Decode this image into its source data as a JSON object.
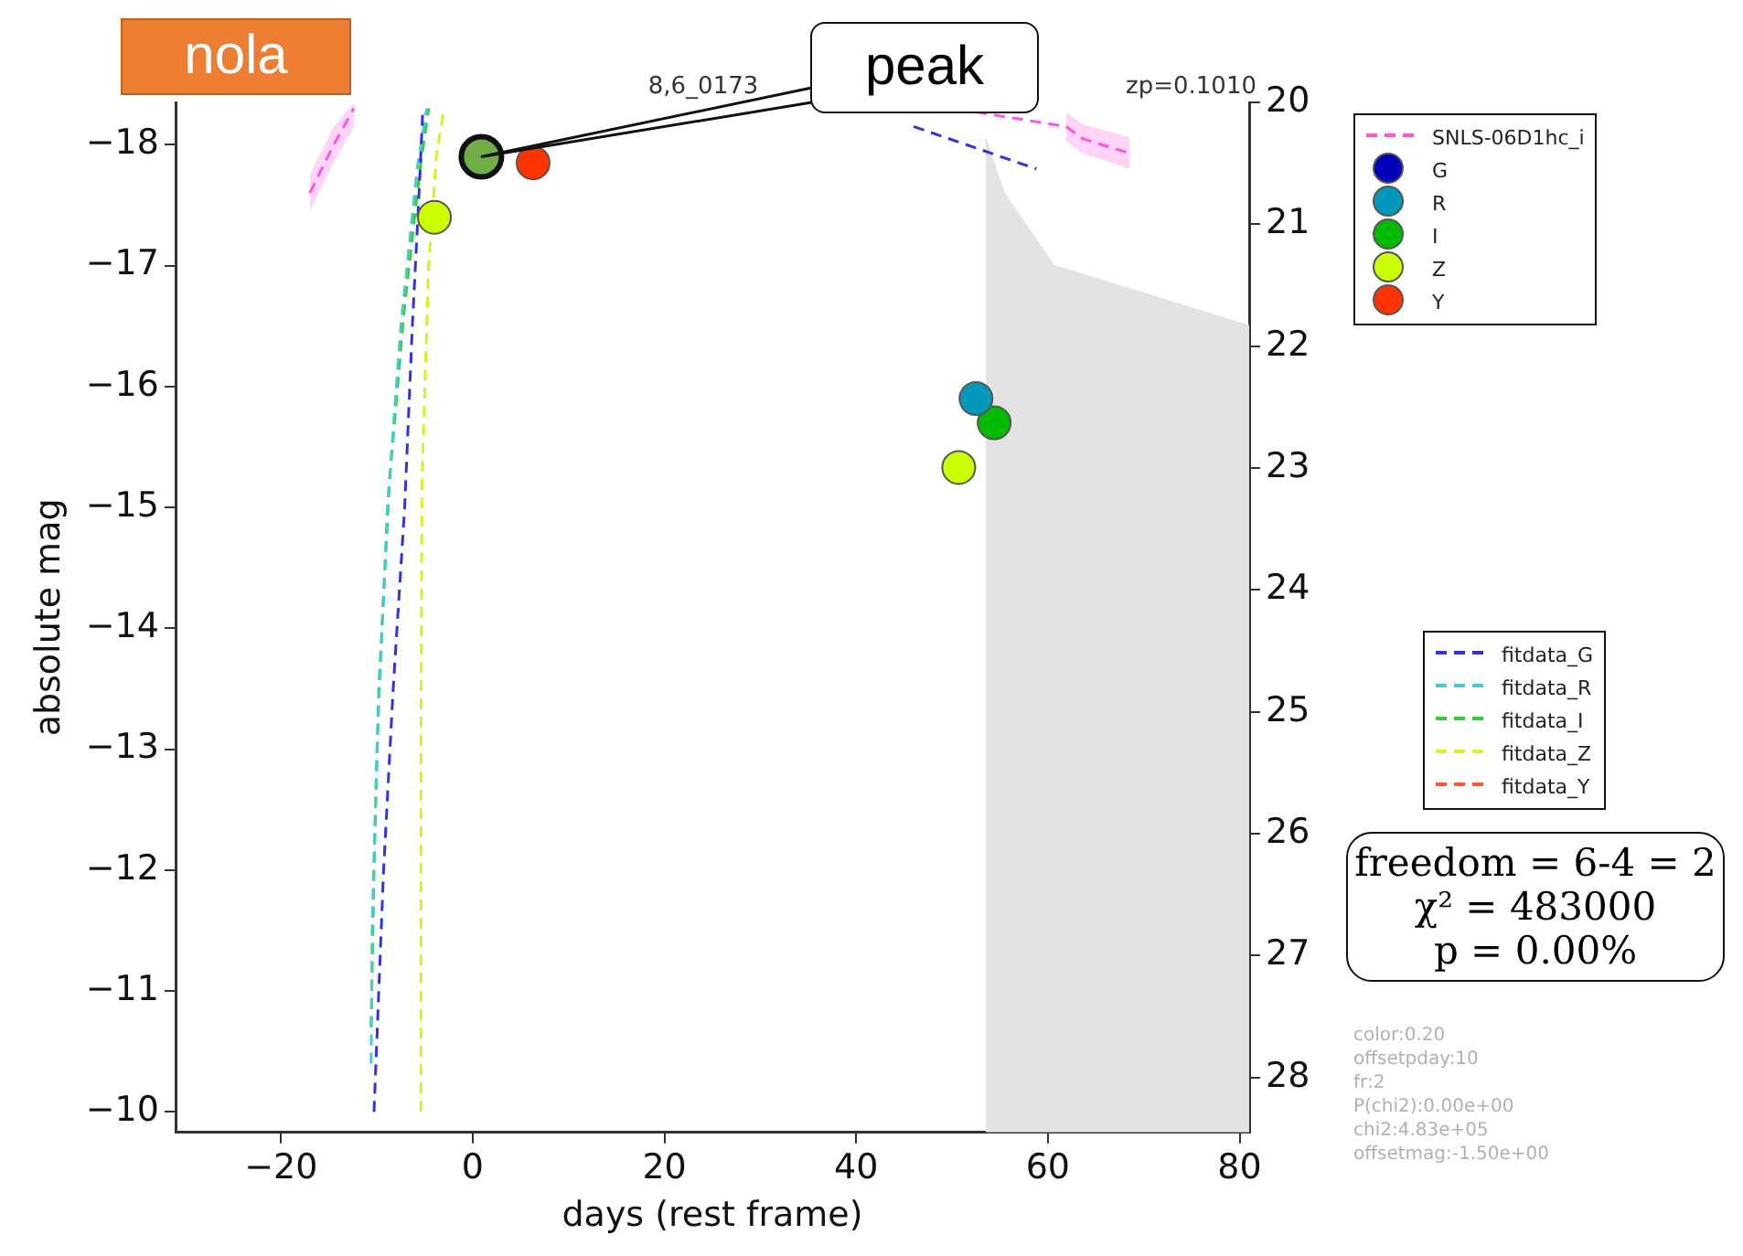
{
  "chart_data": {
    "type": "scatter",
    "title": "8,6_0173",
    "xlabel": "days (rest frame)",
    "ylabel": "absolute mag",
    "xlim": [
      -31,
      81
    ],
    "xticks": [
      -20,
      0,
      20,
      40,
      60,
      80
    ],
    "ylim": [
      -9.83,
      -18.35
    ],
    "yticks": [
      -18,
      -17,
      -16,
      -15,
      -14,
      -13,
      -12,
      -11,
      -10
    ],
    "y2lim": [
      28.45,
      20
    ],
    "y2ticks": [
      20,
      21,
      22,
      23,
      24,
      25,
      26,
      27,
      28
    ],
    "grid": false,
    "legend": "right",
    "series": [
      {
        "type": "area",
        "color": "#e3e3e3",
        "x": [
          53.5,
          55.4,
          60.6,
          81
        ],
        "values": [
          -18.05,
          -17.6,
          -17.0,
          -16.5
        ]
      },
      {
        "type": "line",
        "name": "SNLS-06D1hc_i",
        "color": "#ff55dd",
        "line_style": "dashed",
        "x": [
          -17,
          -14.5,
          -12.4,
          0,
          36.5,
          45,
          52.5,
          61.9,
          63.6,
          68.5
        ],
        "values": [
          -17.6,
          -18.0,
          -18.3,
          null,
          null,
          null,
          -18.27,
          -18.15,
          -18.05,
          -17.93
        ],
        "lower": [
          -17.45,
          -17.85,
          -18.15,
          null,
          null,
          null,
          null,
          -18.03,
          -17.93,
          -17.8
        ],
        "upper": [
          -17.75,
          -18.15,
          -18.35,
          null,
          null,
          null,
          null,
          -18.27,
          -18.17,
          -18.06
        ]
      },
      {
        "name": "G",
        "color": "#0000bb",
        "marker": "circle"
      },
      {
        "name": "R",
        "color": "#0099bb",
        "marker": "circle",
        "x": [
          52.5
        ],
        "values": [
          -15.9
        ]
      },
      {
        "name": "I",
        "color": "#00bb00",
        "marker": "circle",
        "x": [
          54.4
        ],
        "values": [
          -15.7
        ]
      },
      {
        "name": "Z",
        "color": "#ccff00",
        "marker": "circle",
        "x": [
          -4.0,
          50.7
        ],
        "values": [
          -17.4,
          -15.33
        ]
      },
      {
        "name": "Y",
        "color": "#ff3300",
        "marker": "circle",
        "x": [
          6.3
        ],
        "values": [
          -17.85
        ]
      },
      {
        "color": "#70ad47",
        "marker": "circle",
        "x": [
          0.9
        ],
        "values": [
          -17.9
        ]
      },
      {
        "type": "line",
        "name": "fitdata_G",
        "color": "#3333dd",
        "line_style": "dashed",
        "x": [
          -10.3,
          -9.3,
          -8.3,
          -7.1,
          -6.3,
          -5.6,
          -5.2,
          20,
          46,
          58.8
        ],
        "values": [
          -10,
          -12,
          -13.5,
          -15,
          -16.5,
          -17.6,
          -18.3,
          null,
          -18.15,
          -17.8
        ]
      },
      {
        "type": "line",
        "name": "fitdata_R",
        "color": "#44cccc",
        "line_style": "dashed",
        "x": [
          -10.6,
          -10.5,
          -10,
          -8.9,
          -7.5,
          -5.8,
          -4.8
        ],
        "values": [
          -10.4,
          -11.5,
          -13,
          -15,
          -16.5,
          -17.8,
          -18.3
        ]
      },
      {
        "type": "line",
        "name": "fitdata_I",
        "color": "#33cc33",
        "line_style": "dashed",
        "x": [
          -10.6,
          -10.3,
          -9.8,
          -8.7,
          -7.2,
          -5.5,
          -4.6
        ],
        "values": [
          -10.7,
          -12,
          -13.5,
          -15.2,
          -16.6,
          -17.8,
          -18.3
        ]
      },
      {
        "type": "line",
        "name": "fitdata_Z",
        "color": "#ddee22",
        "line_style": "dashed",
        "x": [
          -5.4,
          -5.4,
          -5.3,
          -4.6,
          -3.8,
          -3.0
        ],
        "values": [
          -10,
          -13,
          -15.2,
          -17,
          -17.9,
          -18.3
        ]
      },
      {
        "type": "line",
        "name": "fitdata_Y",
        "color": "#ff5533",
        "line_style": "dashed"
      }
    ],
    "annotations": [
      "nola",
      "peak",
      "zp=0.1010",
      "freedom = 6-4 = 2",
      "χ² = 483000",
      "p = 0.00%",
      "color:0.20",
      "offsetpday:10",
      "fr:2",
      "P(chi2):0.00e+00",
      "chi2:4.83e+05",
      "offsetmag:-1.50e+00"
    ]
  }
}
